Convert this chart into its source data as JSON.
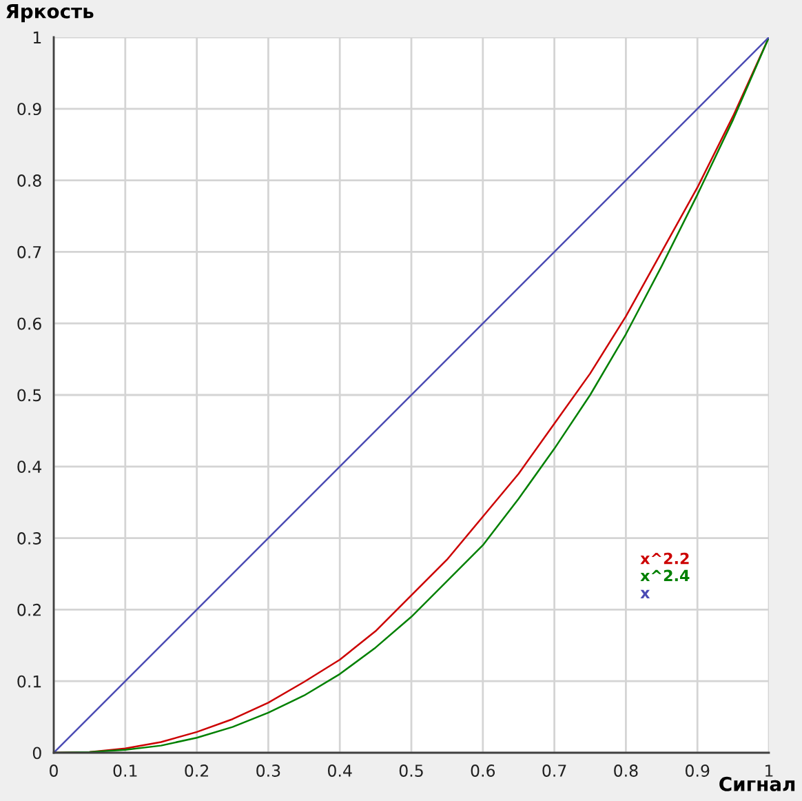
{
  "chart_data": {
    "type": "line",
    "xlabel": "Сигнал",
    "ylabel": "Яркость",
    "xlim": [
      0,
      1
    ],
    "ylim": [
      0,
      1
    ],
    "xticks": [
      0,
      0.1,
      0.2,
      0.3,
      0.4,
      0.5,
      0.6,
      0.7,
      0.8,
      0.9,
      1
    ],
    "yticks": [
      0,
      0.1,
      0.2,
      0.3,
      0.4,
      0.5,
      0.6,
      0.7,
      0.8,
      0.9,
      1
    ],
    "grid": true,
    "legend": "bottom right",
    "series": [
      {
        "name": "x^2.2",
        "color": "#cc0000",
        "x": [
          0,
          0.05,
          0.1,
          0.15,
          0.2,
          0.25,
          0.3,
          0.35,
          0.4,
          0.45,
          0.5,
          0.55,
          0.6,
          0.65,
          0.7,
          0.75,
          0.8,
          0.85,
          0.9,
          0.95,
          1
        ],
        "values": [
          0,
          0.001,
          0.006,
          0.015,
          0.029,
          0.047,
          0.07,
          0.099,
          0.13,
          0.17,
          0.22,
          0.27,
          0.33,
          0.39,
          0.46,
          0.53,
          0.61,
          0.7,
          0.79,
          0.89,
          1
        ]
      },
      {
        "name": "x^2.4",
        "color": "#008000",
        "x": [
          0,
          0.05,
          0.1,
          0.15,
          0.2,
          0.25,
          0.3,
          0.35,
          0.4,
          0.45,
          0.5,
          0.55,
          0.6,
          0.65,
          0.7,
          0.75,
          0.8,
          0.85,
          0.9,
          0.95,
          1
        ],
        "values": [
          0,
          0.001,
          0.004,
          0.01,
          0.021,
          0.036,
          0.056,
          0.08,
          0.11,
          0.147,
          0.19,
          0.24,
          0.29,
          0.355,
          0.425,
          0.5,
          0.585,
          0.68,
          0.78,
          0.885,
          1
        ]
      },
      {
        "name": "x",
        "color": "#4b4bb4",
        "x": [
          0,
          1
        ],
        "values": [
          0,
          1
        ]
      }
    ]
  }
}
